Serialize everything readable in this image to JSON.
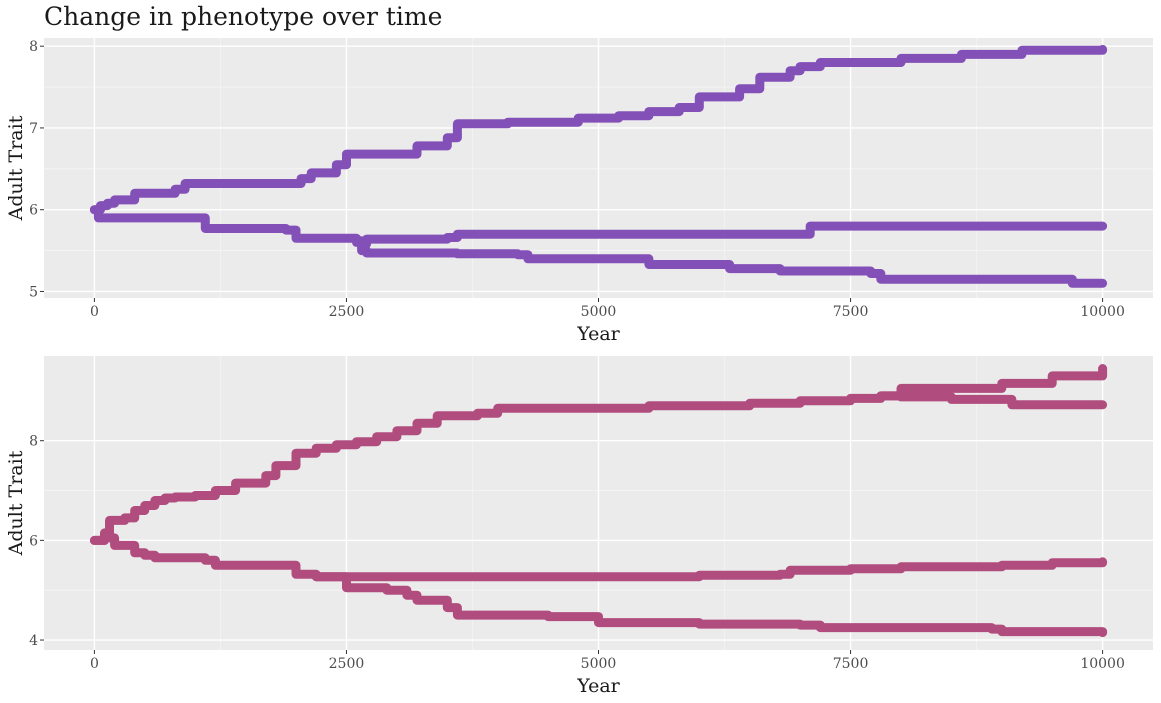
{
  "title": "Change in phenotype over time",
  "chart_data": [
    {
      "type": "line",
      "title": "",
      "xlabel": "Year",
      "ylabel": "Adult Trait",
      "xlim": [
        -500,
        10500
      ],
      "ylim": [
        4.92,
        8.1
      ],
      "x_ticks": [
        0,
        2500,
        5000,
        7500,
        10000
      ],
      "x_tick_labels": [
        "0",
        "2500",
        "5000",
        "7500",
        "10000"
      ],
      "y_ticks": [
        5,
        6,
        7,
        8
      ],
      "y_tick_labels": [
        "5",
        "6",
        "7",
        "8"
      ],
      "grid": true,
      "color": "#8350b8",
      "series": [
        {
          "x": [
            0,
            60,
            130,
            200,
            400,
            800,
            900,
            2050,
            2150,
            2400,
            2500,
            2700,
            3200,
            3500,
            3600,
            4100,
            4800,
            5200,
            5500,
            5800,
            6000,
            6400,
            6600,
            6900,
            7000,
            7200,
            7900,
            8000,
            8400,
            8600,
            9000,
            9200,
            9600,
            10000
          ],
          "y": [
            6.0,
            6.05,
            6.08,
            6.12,
            6.2,
            6.25,
            6.32,
            6.38,
            6.45,
            6.55,
            6.68,
            6.68,
            6.78,
            6.88,
            7.05,
            7.07,
            7.12,
            7.15,
            7.2,
            7.25,
            7.38,
            7.48,
            7.62,
            7.7,
            7.75,
            7.8,
            7.8,
            7.85,
            7.85,
            7.9,
            7.9,
            7.95,
            7.95,
            7.96
          ]
        },
        {
          "x": [
            0,
            40,
            1000,
            1100,
            1900,
            2000,
            2600,
            2650,
            2700,
            3500,
            3600,
            7000,
            7100,
            10000
          ],
          "y": [
            6.0,
            5.9,
            5.9,
            5.77,
            5.75,
            5.65,
            5.62,
            5.58,
            5.64,
            5.66,
            5.7,
            5.7,
            5.8,
            5.8
          ]
        },
        {
          "x": [
            2600,
            2650,
            2700,
            3600,
            4200,
            4300,
            5400,
            5500,
            6200,
            6300,
            6700,
            6800,
            7700,
            7800,
            9600,
            9700,
            10000
          ],
          "y": [
            5.6,
            5.5,
            5.47,
            5.46,
            5.45,
            5.4,
            5.4,
            5.33,
            5.33,
            5.28,
            5.28,
            5.25,
            5.22,
            5.15,
            5.15,
            5.1,
            5.1
          ]
        }
      ]
    },
    {
      "type": "line",
      "title": "",
      "xlabel": "Year",
      "ylabel": "Adult Trait",
      "xlim": [
        -500,
        10500
      ],
      "ylim": [
        3.8,
        9.7
      ],
      "x_ticks": [
        0,
        2500,
        5000,
        7500,
        10000
      ],
      "x_tick_labels": [
        "0",
        "2500",
        "5000",
        "7500",
        "10000"
      ],
      "y_ticks": [
        4,
        6,
        8
      ],
      "y_tick_labels": [
        "4",
        "6",
        "8"
      ],
      "grid": true,
      "color": "#b14d7e",
      "series": [
        {
          "x": [
            0,
            100,
            150,
            300,
            400,
            500,
            600,
            700,
            800,
            1000,
            1200,
            1400,
            1700,
            1800,
            2000,
            2200,
            2400,
            2600,
            2800,
            3000,
            3200,
            3400,
            3800,
            4000,
            5000,
            5500,
            6500,
            7000,
            7500,
            7800,
            8000,
            9000,
            9500,
            10000
          ],
          "y": [
            6.0,
            6.15,
            6.4,
            6.45,
            6.6,
            6.7,
            6.8,
            6.85,
            6.87,
            6.9,
            7.0,
            7.15,
            7.3,
            7.5,
            7.75,
            7.85,
            7.92,
            7.98,
            8.08,
            8.2,
            8.35,
            8.5,
            8.55,
            8.65,
            8.65,
            8.7,
            8.75,
            8.8,
            8.85,
            8.9,
            9.05,
            9.15,
            9.3,
            9.45
          ]
        },
        {
          "x": [
            7800,
            8000,
            8400,
            8500,
            9000,
            9100,
            9500,
            10000
          ],
          "y": [
            8.9,
            8.88,
            8.88,
            8.83,
            8.83,
            8.72,
            8.72,
            8.72
          ]
        },
        {
          "x": [
            0,
            100,
            200,
            400,
            500,
            600,
            1100,
            1200,
            1900,
            2000,
            2200,
            4000,
            6000,
            6800,
            6900,
            7500,
            8000,
            9000,
            9500,
            10000
          ],
          "y": [
            6.0,
            6.05,
            5.9,
            5.75,
            5.7,
            5.65,
            5.6,
            5.5,
            5.5,
            5.32,
            5.27,
            5.27,
            5.3,
            5.32,
            5.4,
            5.43,
            5.47,
            5.5,
            5.55,
            5.57
          ]
        },
        {
          "x": [
            2200,
            2500,
            2900,
            3100,
            3200,
            3500,
            3600,
            4000,
            4500,
            5000,
            6000,
            7000,
            7200,
            8900,
            9000,
            10000
          ],
          "y": [
            5.27,
            5.05,
            5.0,
            4.9,
            4.8,
            4.65,
            4.5,
            4.5,
            4.47,
            4.35,
            4.32,
            4.3,
            4.25,
            4.22,
            4.17,
            4.15
          ]
        }
      ]
    }
  ]
}
